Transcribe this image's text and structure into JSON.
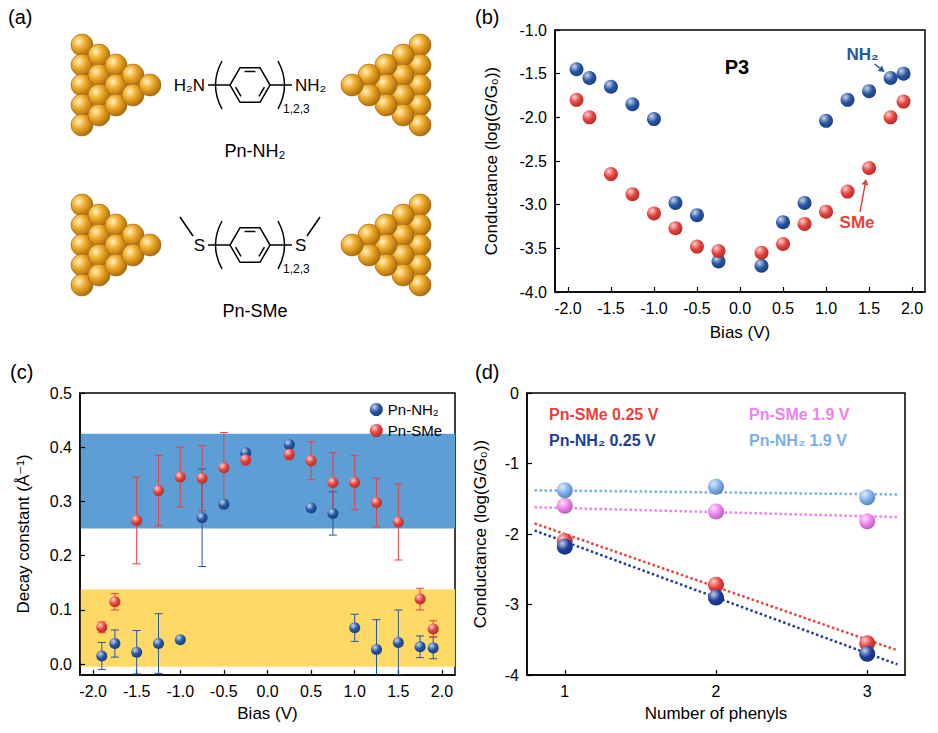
{
  "diagram": {
    "panel": "(a)",
    "molecules": [
      {
        "left": "H₂N",
        "right": "NH₂",
        "repeat": "1,2,3",
        "label": "Pn-NH₂",
        "methyl": false
      },
      {
        "left": "S",
        "right": "S",
        "repeat": "1,2,3",
        "label": "Pn-SMe",
        "methyl": true
      }
    ]
  },
  "chart_data": [
    {
      "type": "scatter",
      "panel": "(b)",
      "title": "P3",
      "x_label": "Bias (V)",
      "y_label": "Conductance (log(G/G₀))",
      "marker": "sphere",
      "grid": false,
      "xlim": [
        -2.15,
        2.15
      ],
      "xticks": [
        {
          "value": -2,
          "label": "-2.0"
        },
        -1.5,
        {
          "value": -1,
          "label": "-1.0"
        },
        -0.5,
        {
          "value": 0,
          "label": "0.0"
        },
        0.5,
        {
          "value": 1,
          "label": "1.0"
        },
        1.5,
        {
          "value": 2,
          "label": "2.0"
        }
      ],
      "ylim": [
        -4,
        -1
      ],
      "yticks": [
        {
          "value": -4,
          "label": "-4.0"
        },
        -3.5,
        {
          "value": -3,
          "label": "-3.0"
        },
        -2.5,
        {
          "value": -2,
          "label": "-2.0"
        },
        -1.5,
        {
          "value": -1,
          "label": "-1.0"
        }
      ],
      "x": [
        -1.9,
        -1.75,
        -1.5,
        -1.25,
        -1.0,
        -0.75,
        -0.5,
        -0.25,
        0.25,
        0.5,
        0.75,
        1.0,
        1.25,
        1.5,
        1.75,
        1.9
      ],
      "series": [
        {
          "color": "#2456a6",
          "values": [
            -1.45,
            -1.55,
            -1.65,
            -1.85,
            -2.02,
            -2.98,
            -3.12,
            -3.65,
            -3.7,
            -3.2,
            -2.98,
            -2.04,
            -1.8,
            -1.7,
            -1.55,
            -1.5
          ]
        },
        {
          "color": "#e8403a",
          "values": [
            -1.8,
            -2.0,
            -2.65,
            -2.88,
            -3.1,
            -3.27,
            -3.48,
            -3.53,
            -3.55,
            -3.45,
            -3.22,
            -3.08,
            -2.85,
            -2.58,
            -2.0,
            -1.82
          ]
        }
      ],
      "annotations": [
        {
          "text": "NH₂",
          "x": 1.75,
          "y": -1.55,
          "color": "#2456a6"
        },
        {
          "text": "SMe",
          "x": 1.5,
          "y": -2.58,
          "color": "#e8403a"
        }
      ]
    },
    {
      "type": "scatter",
      "panel": "(c)",
      "x_label": "Bias (V)",
      "y_label": "Decay constant (Å⁻¹)",
      "marker": "sphere",
      "grid": false,
      "legend": "upper right",
      "xlim": [
        -2.15,
        2.15
      ],
      "xticks": [
        {
          "value": -2,
          "label": "-2.0"
        },
        -1.5,
        {
          "value": -1,
          "label": "-1.0"
        },
        -0.5,
        {
          "value": 0,
          "label": "0.0"
        },
        0.5,
        {
          "value": 1,
          "label": "1.0"
        },
        1.5,
        {
          "value": 2,
          "label": "2.0"
        }
      ],
      "ylim": [
        -0.02,
        0.5
      ],
      "yticks": [
        {
          "value": 0,
          "label": "0.0"
        },
        0.1,
        0.2,
        0.3,
        0.4,
        0.5
      ],
      "bands": [
        {
          "from": 0.25,
          "to": 0.425,
          "color": "#5e9ed6"
        },
        {
          "from": -0.005,
          "to": 0.138,
          "color": "#ffd966"
        }
      ],
      "x": [
        -1.9,
        -1.75,
        -1.5,
        -1.25,
        -1.0,
        -0.75,
        -0.5,
        -0.25,
        0.25,
        0.5,
        0.75,
        1.0,
        1.25,
        1.5,
        1.75,
        1.9
      ],
      "series": [
        {
          "name": "Pn-NH₂",
          "color": "#2456a6",
          "values": [
            0.015,
            0.038,
            0.022,
            0.038,
            0.045,
            0.27,
            0.295,
            0.39,
            0.405,
            0.288,
            0.278,
            0.067,
            0.027,
            0.04,
            0.032,
            0.03
          ],
          "errors": [
            0.025,
            0.025,
            0.04,
            0.055,
            0.005,
            0.09,
            0.005,
            0.005,
            0.005,
            0.005,
            0.04,
            0.025,
            0.055,
            0.06,
            0.02,
            0.02
          ]
        },
        {
          "name": "Pn-SMe",
          "color": "#e8403a",
          "values": [
            0.068,
            0.115,
            0.265,
            0.32,
            0.345,
            0.343,
            0.362,
            0.377,
            0.387,
            0.375,
            0.335,
            0.335,
            0.298,
            0.262,
            0.12,
            0.065
          ],
          "errors": [
            0.01,
            0.015,
            0.08,
            0.065,
            0.055,
            0.06,
            0.065,
            0.01,
            0.01,
            0.035,
            0.055,
            0.05,
            0.045,
            0.07,
            0.02,
            0.015
          ]
        }
      ]
    },
    {
      "type": "scatter",
      "panel": "(d)",
      "x_label": "Number of phenyls",
      "y_label": "Conductance (log(G/G₀))",
      "marker": "sphere",
      "grid": false,
      "legend": "top",
      "line_style": "dotted",
      "xlim": [
        0.75,
        3.25
      ],
      "xticks": [
        1,
        2,
        3
      ],
      "ylim": [
        -4,
        0
      ],
      "yticks": [
        -4,
        -3,
        -2,
        -1,
        0
      ],
      "x": [
        1,
        2,
        3
      ],
      "series": [
        {
          "name": "Pn-SMe 0.25 V",
          "color": "#e8403a",
          "values": [
            -2.1,
            -2.72,
            -3.55
          ],
          "fit": {
            "x": [
              0.8,
              3.2
            ],
            "y": [
              -1.85,
              -3.65
            ]
          }
        },
        {
          "name": "Pn-NH₂ 0.25 V",
          "color": "#1d3f9e",
          "values": [
            -2.18,
            -2.9,
            -3.7
          ],
          "fit": {
            "x": [
              0.8,
              3.2
            ],
            "y": [
              -1.95,
              -3.85
            ]
          }
        },
        {
          "name": "Pn-SMe 1.9 V",
          "color": "#ee82ee",
          "values": [
            -1.6,
            -1.68,
            -1.82
          ],
          "fit": {
            "x": [
              0.8,
              3.2
            ],
            "y": [
              -1.62,
              -1.76
            ]
          }
        },
        {
          "name": "Pn-NH₂ 1.9 V",
          "color": "#7ab0ea",
          "values": [
            -1.38,
            -1.33,
            -1.48
          ],
          "fit": {
            "x": [
              0.8,
              3.2
            ],
            "y": [
              -1.38,
              -1.44
            ]
          }
        }
      ]
    }
  ]
}
